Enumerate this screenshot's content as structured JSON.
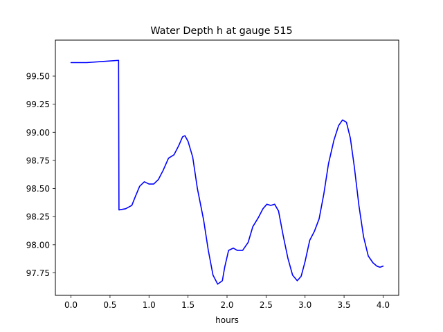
{
  "chart_data": {
    "type": "line",
    "title": "Water Depth h at gauge 515",
    "xlabel": "hours",
    "ylabel": "",
    "xlim": [
      -0.2,
      4.2
    ],
    "ylim": [
      97.55,
      99.82
    ],
    "xticks": [
      0.0,
      0.5,
      1.0,
      1.5,
      2.0,
      2.5,
      3.0,
      3.5,
      4.0
    ],
    "xtick_labels": [
      "0.0",
      "0.5",
      "1.0",
      "1.5",
      "2.0",
      "2.5",
      "3.0",
      "3.5",
      "4.0"
    ],
    "yticks": [
      97.75,
      98.0,
      98.25,
      98.5,
      98.75,
      99.0,
      99.25,
      99.5
    ],
    "ytick_labels": [
      "97.75",
      "98.00",
      "98.25",
      "98.50",
      "98.75",
      "99.00",
      "99.25",
      "99.50"
    ],
    "grid": false,
    "series": [
      {
        "color": "#0000ff",
        "x": [
          0.0,
          0.2,
          0.4,
          0.61,
          0.615,
          0.62,
          0.7,
          0.78,
          0.82,
          0.88,
          0.94,
          1.0,
          1.06,
          1.12,
          1.18,
          1.25,
          1.32,
          1.38,
          1.43,
          1.46,
          1.5,
          1.56,
          1.62,
          1.7,
          1.76,
          1.82,
          1.88,
          1.94,
          1.97,
          2.02,
          2.08,
          2.13,
          2.2,
          2.27,
          2.33,
          2.4,
          2.46,
          2.51,
          2.56,
          2.61,
          2.66,
          2.72,
          2.78,
          2.84,
          2.9,
          2.95,
          3.0,
          3.06,
          3.12,
          3.18,
          3.24,
          3.3,
          3.37,
          3.43,
          3.48,
          3.53,
          3.58,
          3.63,
          3.69,
          3.75,
          3.81,
          3.87,
          3.92,
          3.96,
          4.0
        ],
        "y": [
          99.62,
          99.62,
          99.63,
          99.64,
          98.31,
          98.31,
          98.32,
          98.35,
          98.42,
          98.52,
          98.56,
          98.54,
          98.54,
          98.58,
          98.66,
          98.77,
          98.8,
          98.88,
          98.96,
          98.97,
          98.92,
          98.78,
          98.5,
          98.22,
          97.95,
          97.73,
          97.65,
          97.68,
          97.8,
          97.95,
          97.97,
          97.95,
          97.95,
          98.02,
          98.16,
          98.24,
          98.32,
          98.36,
          98.35,
          98.36,
          98.3,
          98.08,
          97.88,
          97.73,
          97.68,
          97.72,
          97.85,
          98.04,
          98.12,
          98.23,
          98.45,
          98.72,
          98.93,
          99.06,
          99.11,
          99.09,
          98.95,
          98.7,
          98.35,
          98.07,
          97.9,
          97.84,
          97.81,
          97.8,
          97.81
        ]
      }
    ]
  }
}
